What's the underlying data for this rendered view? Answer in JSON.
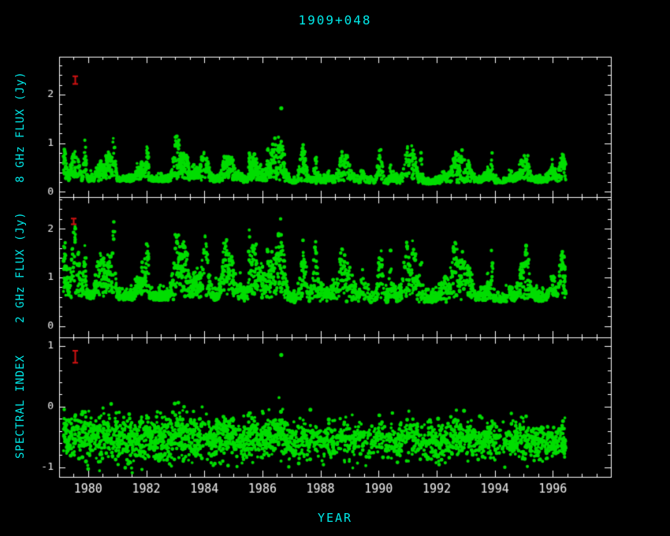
{
  "chart_data": {
    "type": "scatter",
    "title": "1909+048",
    "xlabel": "YEAR",
    "x_range": [
      1979,
      1998
    ],
    "x_major_ticks": [
      1980,
      1982,
      1984,
      1986,
      1988,
      1990,
      1992,
      1994,
      1996
    ],
    "x_minor_step": 0.5,
    "t_data_range": [
      1979.15,
      1996.45
    ],
    "n_points": 2600,
    "seed": 1909048,
    "marker_color": "#00dd00",
    "error_color": "#d01212",
    "frame_color": "#ffffff",
    "tick_label_color": "#f0f0f0",
    "label_color": "#00e8e8",
    "density": [
      [
        1979.15,
        0.95
      ],
      [
        1981,
        1.0
      ],
      [
        1984,
        0.95
      ],
      [
        1986,
        0.9
      ],
      [
        1988,
        0.8
      ],
      [
        1989,
        0.55
      ],
      [
        1990,
        0.6
      ],
      [
        1991.5,
        0.85
      ],
      [
        1993,
        0.8
      ],
      [
        1994.3,
        0.6
      ],
      [
        1995.3,
        0.75
      ],
      [
        1996.45,
        0.9
      ]
    ],
    "bursts": {
      "count": 85,
      "width_min": 0.025,
      "width_max": 0.16,
      "h_min": 0.25,
      "h_span": 1.35,
      "ratio8_min": 0.45,
      "ratio8_span": 0.35
    },
    "panels": [
      {
        "id": "flux8",
        "ylabel": "8 GHz FLUX (Jy)",
        "y_range": [
          -0.11,
          2.78
        ],
        "y_ticks": [
          0,
          1,
          2
        ],
        "y_minor_step": 0.2,
        "kind": "flux",
        "base": [
          [
            1979.15,
            0.22
          ],
          [
            1984,
            0.2
          ],
          [
            1988,
            0.16
          ],
          [
            1992,
            0.16
          ],
          [
            1996.45,
            0.2
          ]
        ],
        "noise_sigma": 0.06,
        "amp_scale": [
          [
            1979.15,
            1.0
          ],
          [
            1981,
            1.0
          ],
          [
            1983,
            1.05
          ],
          [
            1985,
            0.85
          ],
          [
            1987,
            0.9
          ],
          [
            1988.5,
            0.7
          ],
          [
            1990,
            0.6
          ],
          [
            1991.4,
            0.8
          ],
          [
            1993,
            0.7
          ],
          [
            1994.5,
            0.6
          ],
          [
            1995.8,
            0.95
          ],
          [
            1996.45,
            0.8
          ]
        ],
        "clip": [
          0.05,
          1.38
        ],
        "error_bar": {
          "x": 1979.55,
          "y": 2.3,
          "err": 0.08
        },
        "outliers": [
          [
            1986.65,
            1.72
          ]
        ]
      },
      {
        "id": "flux2",
        "ylabel": "2 GHz FLUX (Jy)",
        "y_range": [
          -0.23,
          2.65
        ],
        "y_ticks": [
          0,
          1,
          2
        ],
        "y_minor_step": 0.2,
        "kind": "flux",
        "base": [
          [
            1979.15,
            0.55
          ],
          [
            1984,
            0.52
          ],
          [
            1988,
            0.48
          ],
          [
            1992,
            0.48
          ],
          [
            1996.45,
            0.52
          ]
        ],
        "noise_sigma": 0.11,
        "amp_scale": [
          [
            1979.15,
            1.0
          ],
          [
            1981,
            1.15
          ],
          [
            1983,
            1.2
          ],
          [
            1985,
            1.0
          ],
          [
            1987,
            1.0
          ],
          [
            1988.5,
            0.75
          ],
          [
            1990,
            0.7
          ],
          [
            1991.3,
            1.0
          ],
          [
            1993,
            0.85
          ],
          [
            1994.5,
            0.7
          ],
          [
            1995.8,
            1.0
          ],
          [
            1996.45,
            0.9
          ]
        ],
        "clip": [
          0.32,
          2.3
        ],
        "error_bar": {
          "x": 1979.5,
          "y": 2.15,
          "err": 0.06
        },
        "outliers": []
      },
      {
        "id": "alpha",
        "ylabel": "SPECTRAL INDEX",
        "y_range": [
          -1.16,
          1.14
        ],
        "y_ticks": [
          -1,
          0,
          1
        ],
        "y_minor_step": 0.2,
        "kind": "index",
        "center": [
          [
            1979.15,
            -0.5
          ],
          [
            1983,
            -0.55
          ],
          [
            1988,
            -0.6
          ],
          [
            1996.45,
            -0.6
          ]
        ],
        "spread": [
          [
            1979.15,
            0.2
          ],
          [
            1984,
            0.18
          ],
          [
            1988,
            0.15
          ],
          [
            1996.45,
            0.15
          ]
        ],
        "flare_shift": 0.25,
        "clip": [
          -1.12,
          0.45
        ],
        "error_bar": {
          "x": 1979.55,
          "y": 0.82,
          "err": 0.1
        },
        "outliers": [
          [
            1986.65,
            0.85
          ]
        ]
      }
    ]
  }
}
